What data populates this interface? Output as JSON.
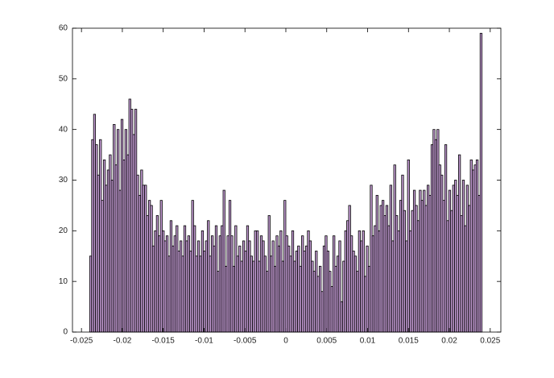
{
  "chart_data": {
    "type": "histogram",
    "color": "#c39bd3",
    "edgecolor": "#000000",
    "xlim": [
      -0.0261,
      0.0263
    ],
    "ylim": [
      0,
      60
    ],
    "xticks": [
      -0.025,
      -0.02,
      -0.015,
      -0.01,
      -0.005,
      0,
      0.005,
      0.01,
      0.015,
      0.02,
      0.025
    ],
    "yticks": [
      0,
      10,
      20,
      30,
      40,
      50,
      60
    ],
    "grid": false,
    "bins": [
      -0.024,
      -0.02376,
      -0.02352,
      -0.02328,
      -0.02304,
      -0.0228,
      -0.02256,
      -0.02232,
      -0.02208,
      -0.02184,
      -0.0216,
      -0.02136,
      -0.02112,
      -0.02088,
      -0.02064,
      -0.0204,
      -0.02016,
      -0.01992,
      -0.01968,
      -0.01944,
      -0.0192,
      -0.01896,
      -0.01872,
      -0.01848,
      -0.01824,
      -0.018,
      -0.01776,
      -0.01752,
      -0.01728,
      -0.01704,
      -0.0168,
      -0.01656,
      -0.01632,
      -0.01608,
      -0.01584,
      -0.0156,
      -0.01536,
      -0.01512,
      -0.01488,
      -0.01464,
      -0.0144,
      -0.01416,
      -0.01392,
      -0.01368,
      -0.01344,
      -0.0132,
      -0.01296,
      -0.01272,
      -0.01248,
      -0.01224,
      -0.012,
      -0.01176,
      -0.01152,
      -0.01128,
      -0.01104,
      -0.0108,
      -0.01056,
      -0.01032,
      -0.01008,
      -0.00984,
      -0.0096,
      -0.00936,
      -0.00912,
      -0.00888,
      -0.00864,
      -0.0084,
      -0.00816,
      -0.00792,
      -0.00768,
      -0.00744,
      -0.0072,
      -0.00696,
      -0.00672,
      -0.00648,
      -0.00624,
      -0.006,
      -0.00576,
      -0.00552,
      -0.00528,
      -0.00504,
      -0.0048,
      -0.00456,
      -0.00432,
      -0.00408,
      -0.00384,
      -0.0036,
      -0.00336,
      -0.00312,
      -0.00288,
      -0.00264,
      -0.0024,
      -0.00216,
      -0.00192,
      -0.00168,
      -0.00144,
      -0.0012,
      -0.00096,
      -0.00072,
      -0.00048,
      -0.00024,
      0,
      0.00024,
      0.00048,
      0.00072,
      0.00096,
      0.0012,
      0.00144,
      0.00168,
      0.00192,
      0.00216,
      0.0024,
      0.00264,
      0.00288,
      0.00312,
      0.00336,
      0.0036,
      0.00384,
      0.00408,
      0.00432,
      0.00456,
      0.0048,
      0.00504,
      0.00528,
      0.00552,
      0.00576,
      0.006,
      0.00624,
      0.00648,
      0.00672,
      0.00696,
      0.0072,
      0.00744,
      0.00768,
      0.00792,
      0.00816,
      0.0084,
      0.00864,
      0.00888,
      0.00912,
      0.00936,
      0.0096,
      0.00984,
      0.01008,
      0.01032,
      0.01056,
      0.0108,
      0.01104,
      0.01128,
      0.01152,
      0.01176,
      0.012,
      0.01224,
      0.01248,
      0.01272,
      0.01296,
      0.0132,
      0.01344,
      0.01368,
      0.01392,
      0.01416,
      0.0144,
      0.01464,
      0.01488,
      0.01512,
      0.01536,
      0.0156,
      0.01584,
      0.01608,
      0.01632,
      0.01656,
      0.0168,
      0.01704,
      0.01728,
      0.01752,
      0.01776,
      0.018,
      0.01824,
      0.01848,
      0.01872,
      0.01896,
      0.0192,
      0.01944,
      0.01968,
      0.01992,
      0.02016,
      0.0204,
      0.02064,
      0.02088,
      0.02112,
      0.02136,
      0.0216,
      0.02184,
      0.02208,
      0.02232,
      0.02256,
      0.0228,
      0.02304,
      0.02328,
      0.02352,
      0.02376,
      0.024
    ],
    "values": [
      15,
      38,
      43,
      37,
      31,
      38,
      26,
      34,
      29,
      32,
      35,
      30,
      41,
      33,
      40,
      28,
      42,
      34,
      40,
      35,
      46,
      44,
      39,
      44,
      31,
      27,
      32,
      29,
      29,
      23,
      26,
      25,
      17,
      20,
      23,
      19,
      26,
      20,
      18,
      19,
      15,
      22,
      17,
      19,
      21,
      16,
      18,
      15,
      21,
      18,
      19,
      16,
      26,
      21,
      15,
      18,
      15,
      20,
      16,
      18,
      22,
      15,
      19,
      17,
      21,
      12,
      19,
      21,
      28,
      13,
      19,
      26,
      19,
      13,
      21,
      15,
      17,
      14,
      18,
      16,
      21,
      18,
      15,
      14,
      20,
      20,
      14,
      19,
      18,
      15,
      12,
      23,
      15,
      18,
      13,
      19,
      17,
      20,
      14,
      26,
      19,
      17,
      15,
      20,
      14,
      16,
      17,
      13,
      19,
      16,
      17,
      20,
      18,
      14,
      12,
      16,
      11,
      13,
      8,
      17,
      19,
      16,
      12,
      9,
      19,
      13,
      15,
      18,
      6,
      14,
      20,
      22,
      25,
      19,
      16,
      15,
      12,
      20,
      18,
      20,
      11,
      17,
      13,
      29,
      19,
      21,
      27,
      20,
      25,
      26,
      23,
      25,
      21,
      29,
      18,
      33,
      23,
      20,
      26,
      31,
      24,
      18,
      34,
      20,
      24,
      28,
      25,
      22,
      28,
      26,
      28,
      25,
      29,
      27,
      37,
      40,
      38,
      40,
      33,
      31,
      26,
      37,
      22,
      28,
      24,
      29,
      30,
      27,
      35,
      23,
      30,
      21,
      29,
      25,
      34,
      32,
      33,
      34,
      27,
      59
    ]
  }
}
